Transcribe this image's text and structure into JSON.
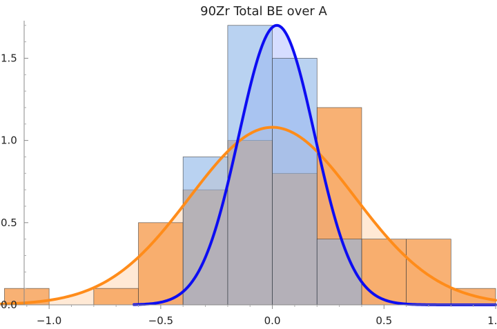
{
  "chart_data": {
    "type": "bar",
    "title": "90Zr Total BE over A",
    "xlabel": "",
    "ylabel": "",
    "xlim": [
      -1.22,
      1.0
    ],
    "ylim": [
      0,
      1.72
    ],
    "x_ticks": [
      -1.0,
      -0.5,
      0.0,
      0.5,
      1.0
    ],
    "x_tick_labels": [
      "−1.0",
      "−0.5",
      "0.0",
      "0.5",
      "1.0"
    ],
    "y_ticks": [
      0.0,
      0.5,
      1.0,
      1.5
    ],
    "y_tick_labels": [
      "0.0",
      "0.5",
      "1.0",
      "1.5"
    ],
    "grid": false,
    "histograms": [
      {
        "color": "#f7a35c",
        "bin_width": 0.2,
        "bins": [
          {
            "left": -1.2,
            "height": 0.1
          },
          {
            "left": -1.0,
            "height": 0.0
          },
          {
            "left": -0.8,
            "height": 0.1
          },
          {
            "left": -0.6,
            "height": 0.5
          },
          {
            "left": -0.4,
            "height": 0.7
          },
          {
            "left": -0.2,
            "height": 1.0
          },
          {
            "left": 0.0,
            "height": 0.8
          },
          {
            "left": 0.2,
            "height": 1.2
          },
          {
            "left": 0.4,
            "height": 0.4
          },
          {
            "left": 0.6,
            "height": 0.4
          },
          {
            "left": 0.8,
            "height": 0.1
          }
        ]
      },
      {
        "color": "#8ab4e8",
        "bin_width": 0.2,
        "bins": [
          {
            "left": -0.4,
            "height": 0.9
          },
          {
            "left": -0.2,
            "height": 1.7
          },
          {
            "left": 0.0,
            "height": 1.5
          },
          {
            "left": 0.2,
            "height": 0.4
          },
          {
            "left": 0.4,
            "height": 0.0
          },
          {
            "left": 0.6,
            "height": 0.0
          }
        ]
      }
    ],
    "curves": [
      {
        "color": "#ff8c1a",
        "kind": "gaussian",
        "mean": 0.0,
        "sigma": 0.37,
        "peak": 1.08,
        "x_range": [
          -1.22,
          1.0
        ],
        "fill": "#ffd7b3"
      },
      {
        "color": "#0d0df2",
        "kind": "gaussian",
        "mean": 0.02,
        "sigma": 0.17,
        "peak": 1.7,
        "x_range": [
          -0.62,
          1.0
        ],
        "fill": "#a3b3ff"
      }
    ]
  }
}
